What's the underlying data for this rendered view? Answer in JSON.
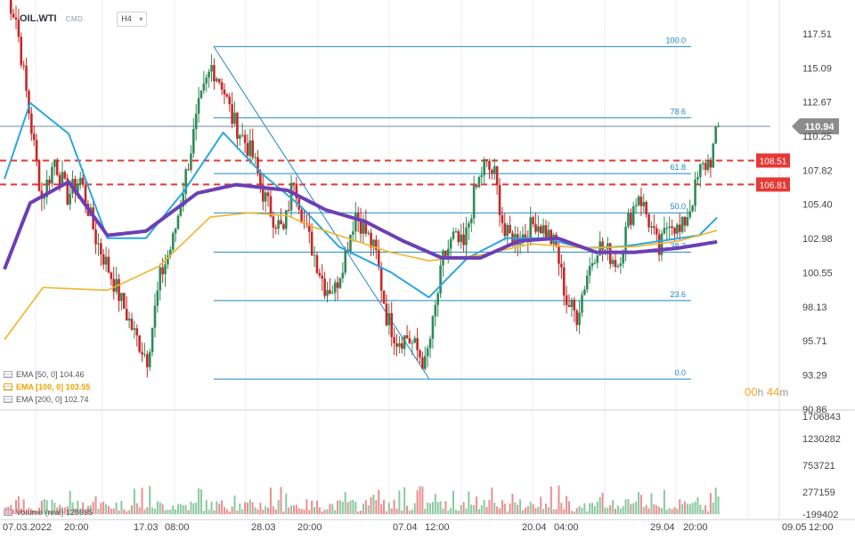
{
  "header": {
    "symbol": "OIL.WTI",
    "category": "CMD",
    "timeframe": "H4"
  },
  "indicators": [
    {
      "label": "EMA  [50,  0]  104.46",
      "color": "#29a8e0",
      "active": false
    },
    {
      "label": "EMA  [100,  0]  103.55",
      "color": "#f0b429",
      "active": true
    },
    {
      "label": "EMA  [200,  0]  102.74",
      "color": "#6c3fb5",
      "active": false
    }
  ],
  "volume_legend": "Volume  (real)  128695",
  "timer": {
    "hours": "00",
    "minutes": "44",
    "h": "h",
    "m": "m"
  },
  "price_axis": {
    "ticks": [
      "117.51",
      "115.09",
      "112.67",
      "110.25",
      "107.82",
      "105.40",
      "102.98",
      "100.55",
      "98.13",
      "95.71",
      "93.29",
      "90.86"
    ],
    "current_price": "110.94",
    "current_color": "#8c8c8c",
    "levels": [
      {
        "label": "108.51",
        "value": 108.51,
        "color": "#e53935"
      },
      {
        "label": "106.81",
        "value": 106.81,
        "color": "#e53935"
      }
    ]
  },
  "volume_axis": {
    "ticks": [
      "1706843",
      "1230282",
      "753721",
      "277159",
      "-199402"
    ]
  },
  "time_axis": {
    "labels": [
      "07.03.2022",
      "20:00",
      "17.03",
      "08:00",
      "28.03",
      "20:00",
      "07.04",
      "12:00",
      "20.04",
      "04:00",
      "29.04",
      "20:00",
      "09.05",
      "12:00"
    ]
  },
  "fibonacci": {
    "high": 116.6,
    "low": 93.0,
    "levels": [
      {
        "ratio": 1.0,
        "label": "100.0"
      },
      {
        "ratio": 0.786,
        "label": "78.6"
      },
      {
        "ratio": 0.618,
        "label": "61.8"
      },
      {
        "ratio": 0.5,
        "label": "50.0"
      },
      {
        "ratio": 0.382,
        "label": "38.2"
      },
      {
        "ratio": 0.236,
        "label": "23.6"
      },
      {
        "ratio": 0.0,
        "label": "0.0"
      }
    ]
  },
  "chart_data": {
    "type": "candlestick",
    "title": "OIL.WTI",
    "timeframe": "H4",
    "y_range": [
      90.86,
      119.4
    ],
    "x_labels": [
      "07.03.2022 20:00",
      "17.03 08:00",
      "28.03 20:00",
      "07.04 12:00",
      "20.04 04:00",
      "29.04 20:00",
      "09.05 12:00"
    ],
    "close_path": [
      {
        "i": 0,
        "p": 120.5
      },
      {
        "i": 4,
        "p": 118.6
      },
      {
        "i": 9,
        "p": 112.0
      },
      {
        "i": 14,
        "p": 105.8
      },
      {
        "i": 19,
        "p": 108.5
      },
      {
        "i": 24,
        "p": 106.0
      },
      {
        "i": 29,
        "p": 107.2
      },
      {
        "i": 35,
        "p": 103.0
      },
      {
        "i": 40,
        "p": 100.8
      },
      {
        "i": 45,
        "p": 98.5
      },
      {
        "i": 50,
        "p": 96.2
      },
      {
        "i": 55,
        "p": 94.5
      },
      {
        "i": 60,
        "p": 100.2
      },
      {
        "i": 65,
        "p": 102.8
      },
      {
        "i": 70,
        "p": 107.5
      },
      {
        "i": 75,
        "p": 112.2
      },
      {
        "i": 80,
        "p": 115.2
      },
      {
        "i": 84,
        "p": 114.0
      },
      {
        "i": 88,
        "p": 111.5
      },
      {
        "i": 92,
        "p": 110.2
      },
      {
        "i": 96,
        "p": 108.8
      },
      {
        "i": 100,
        "p": 106.2
      },
      {
        "i": 104,
        "p": 104.5
      },
      {
        "i": 108,
        "p": 103.4
      },
      {
        "i": 112,
        "p": 107.4
      },
      {
        "i": 116,
        "p": 104.0
      },
      {
        "i": 120,
        "p": 101.8
      },
      {
        "i": 124,
        "p": 99.6
      },
      {
        "i": 128,
        "p": 99.4
      },
      {
        "i": 132,
        "p": 102.0
      },
      {
        "i": 136,
        "p": 104.8
      },
      {
        "i": 140,
        "p": 103.4
      },
      {
        "i": 144,
        "p": 101.8
      },
      {
        "i": 148,
        "p": 97.5
      },
      {
        "i": 152,
        "p": 95.8
      },
      {
        "i": 156,
        "p": 96.0
      },
      {
        "i": 160,
        "p": 95.0
      },
      {
        "i": 163,
        "p": 94.0
      },
      {
        "i": 166,
        "p": 96.8
      },
      {
        "i": 170,
        "p": 101.5
      },
      {
        "i": 174,
        "p": 103.0
      },
      {
        "i": 178,
        "p": 102.3
      },
      {
        "i": 182,
        "p": 106.0
      },
      {
        "i": 186,
        "p": 108.2
      },
      {
        "i": 190,
        "p": 107.5
      },
      {
        "i": 194,
        "p": 103.2
      },
      {
        "i": 198,
        "p": 103.0
      },
      {
        "i": 202,
        "p": 103.3
      },
      {
        "i": 206,
        "p": 104.2
      },
      {
        "i": 210,
        "p": 103.5
      },
      {
        "i": 214,
        "p": 102.3
      },
      {
        "i": 218,
        "p": 98.5
      },
      {
        "i": 222,
        "p": 97.5
      },
      {
        "i": 226,
        "p": 100.5
      },
      {
        "i": 230,
        "p": 102.5
      },
      {
        "i": 234,
        "p": 102.0
      },
      {
        "i": 238,
        "p": 101.2
      },
      {
        "i": 242,
        "p": 104.2
      },
      {
        "i": 246,
        "p": 106.2
      },
      {
        "i": 250,
        "p": 104.2
      },
      {
        "i": 254,
        "p": 102.0
      },
      {
        "i": 258,
        "p": 104.5
      },
      {
        "i": 262,
        "p": 103.3
      },
      {
        "i": 266,
        "p": 105.2
      },
      {
        "i": 270,
        "p": 107.8
      },
      {
        "i": 274,
        "p": 108.6
      },
      {
        "i": 277,
        "p": 110.94
      }
    ],
    "series": [
      {
        "name": "EMA [50, 0]",
        "last": 104.46,
        "color": "#29a8e0",
        "points": [
          [
            0,
            107.2
          ],
          [
            10,
            112.6
          ],
          [
            25,
            110.4
          ],
          [
            40,
            103.0
          ],
          [
            55,
            103.0
          ],
          [
            70,
            106.4
          ],
          [
            85,
            110.5
          ],
          [
            100,
            107.6
          ],
          [
            115,
            105.3
          ],
          [
            130,
            102.4
          ],
          [
            150,
            100.6
          ],
          [
            165,
            98.8
          ],
          [
            180,
            101.6
          ],
          [
            195,
            103.0
          ],
          [
            210,
            103.0
          ],
          [
            225,
            102.3
          ],
          [
            240,
            102.4
          ],
          [
            255,
            102.8
          ],
          [
            270,
            103.2
          ],
          [
            277,
            104.46
          ]
        ]
      },
      {
        "name": "EMA [100, 0]",
        "last": 103.55,
        "color": "#f0b429",
        "points": [
          [
            0,
            95.8
          ],
          [
            15,
            99.5
          ],
          [
            40,
            99.3
          ],
          [
            60,
            101.0
          ],
          [
            80,
            104.5
          ],
          [
            95,
            104.8
          ],
          [
            110,
            104.6
          ],
          [
            120,
            103.8
          ],
          [
            135,
            102.9
          ],
          [
            150,
            102.0
          ],
          [
            165,
            101.4
          ],
          [
            185,
            101.8
          ],
          [
            205,
            102.6
          ],
          [
            225,
            102.3
          ],
          [
            245,
            102.4
          ],
          [
            262,
            102.8
          ],
          [
            277,
            103.55
          ]
        ]
      },
      {
        "name": "EMA [200, 0]",
        "last": 102.74,
        "color": "#6c3fb5",
        "points": [
          [
            0,
            100.8
          ],
          [
            10,
            105.5
          ],
          [
            25,
            107.0
          ],
          [
            40,
            103.2
          ],
          [
            55,
            103.5
          ],
          [
            75,
            106.2
          ],
          [
            90,
            106.8
          ],
          [
            110,
            106.4
          ],
          [
            125,
            105.0
          ],
          [
            140,
            104.2
          ],
          [
            155,
            102.8
          ],
          [
            170,
            101.6
          ],
          [
            185,
            101.6
          ],
          [
            200,
            102.8
          ],
          [
            215,
            103.0
          ],
          [
            230,
            102.0
          ],
          [
            245,
            102.0
          ],
          [
            262,
            102.3
          ],
          [
            277,
            102.74
          ]
        ]
      }
    ],
    "volume": {
      "last": 128695,
      "range": [
        -199402,
        1706843
      ]
    }
  }
}
